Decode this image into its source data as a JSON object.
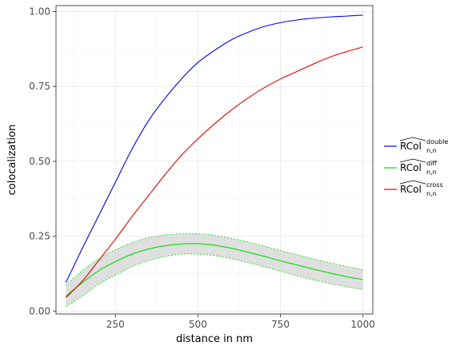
{
  "chart_data": {
    "type": "line",
    "xlabel": "distance in nm",
    "ylabel": "colocalization",
    "xlim": [
      70,
      1030
    ],
    "ylim": [
      -0.01,
      1.02
    ],
    "x_ticks": [
      250,
      500,
      750,
      1000
    ],
    "x_tick_labels": [
      "250",
      "500",
      "750",
      "1000"
    ],
    "y_ticks": [
      0.0,
      0.25,
      0.5,
      0.75,
      1.0
    ],
    "y_tick_labels": [
      "0.00",
      "0.25",
      "0.50",
      "0.75",
      "1.00"
    ],
    "grid": true,
    "legend_position": "right",
    "series": [
      {
        "key": "double",
        "name": "RCol n,n double",
        "legend_base": "RCol",
        "legend_sup": "double",
        "legend_sub": "n,n",
        "color": "#0000ff",
        "x": [
          100,
          150,
          200,
          250,
          300,
          350,
          400,
          450,
          500,
          550,
          600,
          650,
          700,
          750,
          800,
          850,
          900,
          950,
          1000
        ],
        "y": [
          0.095,
          0.21,
          0.32,
          0.43,
          0.54,
          0.635,
          0.71,
          0.775,
          0.83,
          0.87,
          0.905,
          0.93,
          0.95,
          0.963,
          0.972,
          0.978,
          0.982,
          0.985,
          0.988
        ]
      },
      {
        "key": "diff",
        "name": "RCol n,n diff",
        "legend_base": "RCol",
        "legend_sup": "diff",
        "legend_sub": "n,n",
        "color": "#00e000",
        "x": [
          100,
          150,
          200,
          250,
          300,
          350,
          400,
          450,
          500,
          550,
          600,
          650,
          700,
          750,
          800,
          850,
          900,
          950,
          1000
        ],
        "y": [
          0.05,
          0.095,
          0.135,
          0.165,
          0.19,
          0.207,
          0.218,
          0.224,
          0.225,
          0.22,
          0.21,
          0.197,
          0.183,
          0.168,
          0.154,
          0.14,
          0.127,
          0.115,
          0.105
        ],
        "band_lower": [
          0.015,
          0.05,
          0.09,
          0.12,
          0.148,
          0.168,
          0.182,
          0.19,
          0.19,
          0.185,
          0.175,
          0.162,
          0.148,
          0.133,
          0.118,
          0.104,
          0.092,
          0.081,
          0.072
        ],
        "band_upper": [
          0.085,
          0.135,
          0.175,
          0.205,
          0.228,
          0.245,
          0.254,
          0.258,
          0.258,
          0.253,
          0.243,
          0.231,
          0.217,
          0.202,
          0.188,
          0.174,
          0.161,
          0.149,
          0.138
        ],
        "band_color": "#d9d9d9"
      },
      {
        "key": "cross",
        "name": "RCol n,n cross",
        "legend_base": "RCol",
        "legend_sup": "cross",
        "legend_sub": "n,n",
        "color": "#e60000",
        "x": [
          100,
          150,
          200,
          250,
          300,
          350,
          400,
          450,
          500,
          550,
          600,
          650,
          700,
          750,
          800,
          850,
          900,
          950,
          1000
        ],
        "y": [
          0.045,
          0.1,
          0.17,
          0.24,
          0.315,
          0.385,
          0.455,
          0.52,
          0.575,
          0.625,
          0.67,
          0.71,
          0.745,
          0.775,
          0.8,
          0.825,
          0.848,
          0.866,
          0.882
        ]
      }
    ]
  }
}
